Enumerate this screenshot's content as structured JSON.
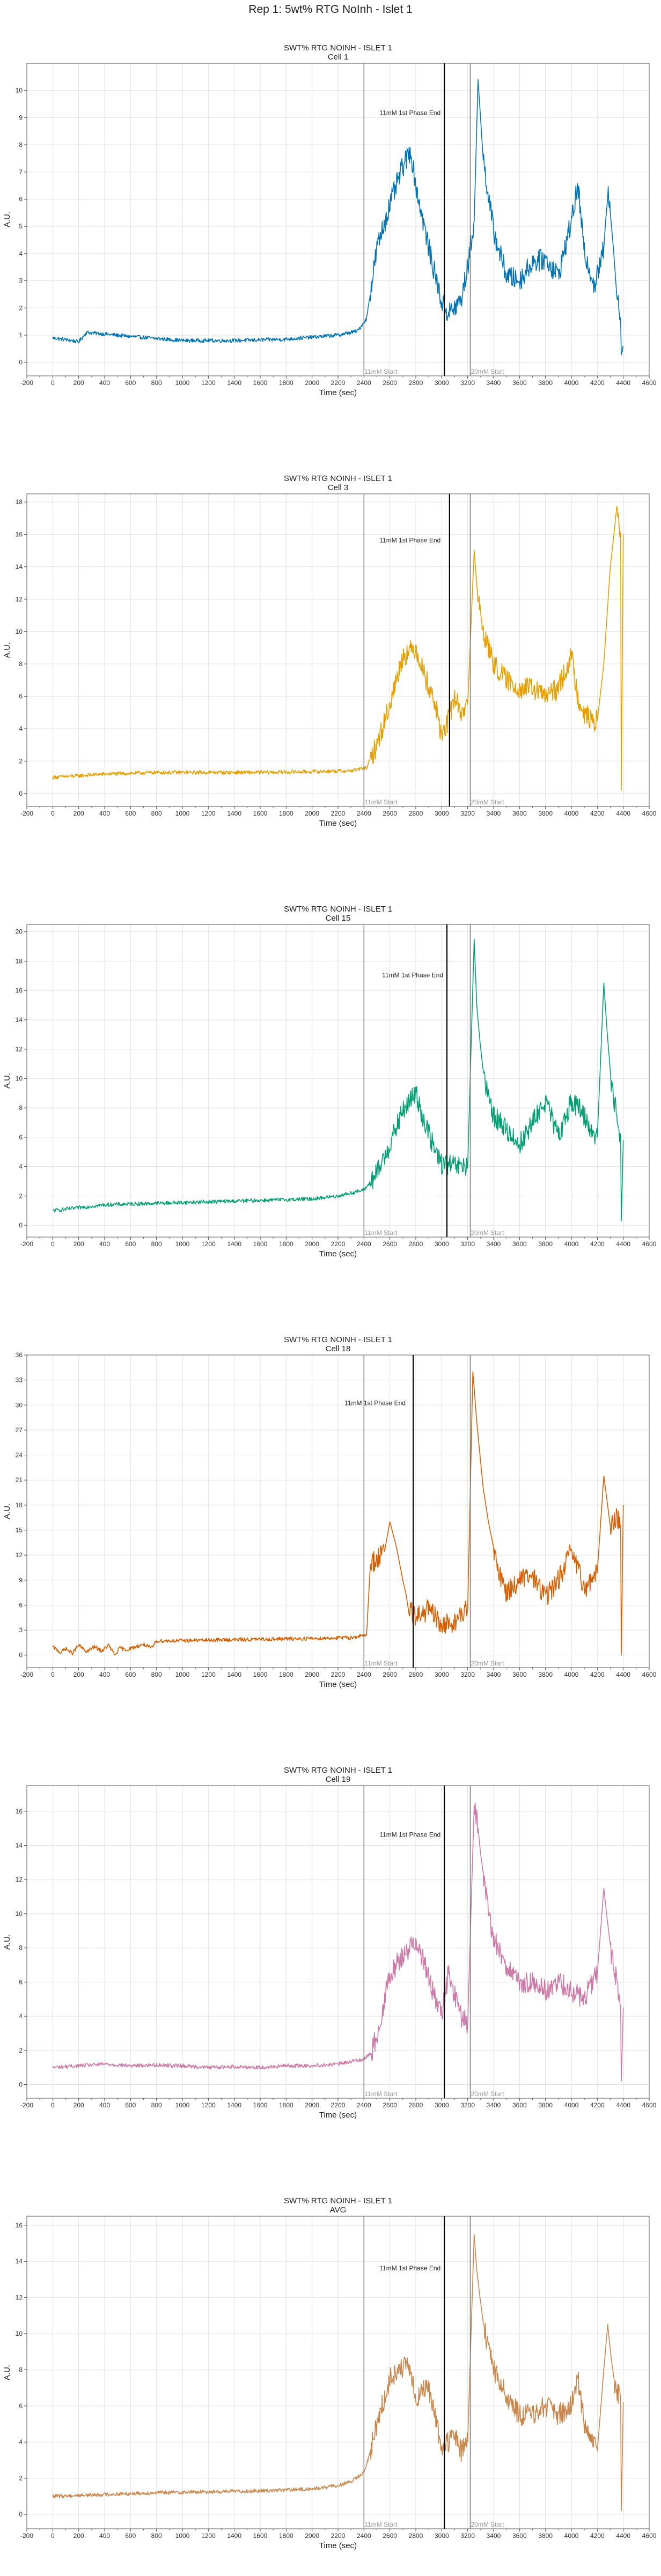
{
  "figure": {
    "suptitle": "Rep 1: 5wt% RTG NoInh - Islet 1"
  },
  "chart_data": [
    {
      "type": "line",
      "title": "SWT% RTG NOINH - ISLET 1",
      "subtitle": "Cell 1",
      "xlabel": "Time (sec)",
      "ylabel": "A.U.",
      "xlim": [
        -200,
        4600
      ],
      "ylim": [
        -0.5,
        11
      ],
      "yticks": [
        0,
        1,
        2,
        3,
        4,
        5,
        6,
        7,
        8,
        9,
        10
      ],
      "xticks": [
        -200,
        0,
        200,
        400,
        600,
        800,
        1000,
        1200,
        1400,
        1600,
        1800,
        2000,
        2200,
        2400,
        2600,
        2800,
        3000,
        3200,
        3400,
        3600,
        3800,
        4000,
        4200,
        4400,
        4600
      ],
      "grid": true,
      "series": [
        {
          "color": "#0072b2",
          "x": [
            0,
            150,
            200,
            260,
            600,
            1000,
            1400,
            1800,
            2200,
            2350,
            2420,
            2500,
            2600,
            2700,
            2760,
            2800,
            2900,
            3000,
            3050,
            3100,
            3150,
            3200,
            3250,
            3280,
            3320,
            3400,
            3500,
            3600,
            3700,
            3800,
            3900,
            3950,
            4000,
            4050,
            4100,
            4150,
            4180,
            4250,
            4280,
            4300,
            4350,
            4380,
            4385,
            4400
          ],
          "y": [
            0.9,
            0.8,
            0.75,
            1.1,
            0.95,
            0.8,
            0.8,
            0.85,
            1.0,
            1.15,
            1.6,
            4.2,
            5.8,
            7.2,
            7.8,
            6.5,
            4.2,
            2.2,
            1.8,
            2.0,
            2.3,
            3.5,
            5.2,
            10.4,
            7.5,
            4.8,
            3.2,
            3.0,
            3.7,
            3.8,
            3.2,
            4.2,
            5.2,
            6.5,
            4.0,
            3.3,
            2.8,
            4.2,
            6.3,
            5.5,
            2.8,
            1.5,
            0.3,
            0.6
          ]
        }
      ],
      "vlines": [
        {
          "x": 2400,
          "label": "11mM Start",
          "color": "#777777",
          "width": 1.5
        },
        {
          "x": 3020,
          "label": "",
          "color": "#000000",
          "width": 2.2
        },
        {
          "x": 3220,
          "label": "20mM Start",
          "color": "#777777",
          "width": 1.5
        }
      ],
      "annotation": {
        "text": "11mM 1st Phase End",
        "x": 2520,
        "y": 9.1
      }
    },
    {
      "type": "line",
      "title": "SWT% RTG NOINH - ISLET 1",
      "subtitle": "Cell 3",
      "xlabel": "Time (sec)",
      "ylabel": "A.U.",
      "xlim": [
        -200,
        4600
      ],
      "ylim": [
        -0.8,
        18.5
      ],
      "yticks": [
        0,
        2,
        4,
        6,
        8,
        10,
        12,
        14,
        16,
        18
      ],
      "xticks": [
        -200,
        0,
        200,
        400,
        600,
        800,
        1000,
        1200,
        1400,
        1600,
        1800,
        2000,
        2200,
        2400,
        2600,
        2800,
        3000,
        3200,
        3400,
        3600,
        3800,
        4000,
        4200,
        4400,
        4600
      ],
      "grid": true,
      "series": [
        {
          "color": "#e69f00",
          "x": [
            0,
            200,
            400,
            800,
            1200,
            1600,
            2000,
            2300,
            2420,
            2500,
            2600,
            2700,
            2800,
            2860,
            2950,
            3000,
            3050,
            3100,
            3150,
            3200,
            3250,
            3280,
            3320,
            3400,
            3500,
            3600,
            3700,
            3800,
            3900,
            4000,
            4050,
            4100,
            4150,
            4200,
            4250,
            4300,
            4350,
            4380,
            4385,
            4400
          ],
          "y": [
            1.0,
            1.1,
            1.2,
            1.3,
            1.3,
            1.3,
            1.35,
            1.4,
            1.6,
            3.0,
            5.5,
            8.5,
            9.0,
            7.5,
            5.5,
            3.5,
            4.5,
            6.0,
            5.0,
            5.5,
            15.0,
            12.0,
            10.0,
            8.0,
            7.0,
            6.5,
            6.5,
            6.0,
            6.5,
            8.5,
            6.0,
            5.0,
            4.5,
            4.5,
            8.0,
            14.0,
            17.5,
            16.0,
            0.2,
            16.0
          ]
        }
      ],
      "vlines": [
        {
          "x": 2400,
          "label": "11mM Start",
          "color": "#777777",
          "width": 1.5
        },
        {
          "x": 3060,
          "label": "",
          "color": "#000000",
          "width": 2.2
        },
        {
          "x": 3220,
          "label": "20mM Start",
          "color": "#777777",
          "width": 1.5
        }
      ],
      "annotation": {
        "text": "11mM 1st Phase End",
        "x": 2520,
        "y": 15.5
      }
    },
    {
      "type": "line",
      "title": "SWT% RTG NOINH - ISLET 1",
      "subtitle": "Cell 15",
      "xlabel": "Time (sec)",
      "ylabel": "A.U.",
      "xlim": [
        -200,
        4600
      ],
      "ylim": [
        -0.8,
        20.5
      ],
      "yticks": [
        0,
        2,
        4,
        6,
        8,
        10,
        12,
        14,
        16,
        18,
        20
      ],
      "xticks": [
        -200,
        0,
        200,
        400,
        600,
        800,
        1000,
        1200,
        1400,
        1600,
        1800,
        2000,
        2200,
        2400,
        2600,
        2800,
        3000,
        3200,
        3400,
        3600,
        3800,
        4000,
        4200,
        4400,
        4600
      ],
      "grid": true,
      "series": [
        {
          "color": "#009e73",
          "x": [
            0,
            200,
            400,
            800,
            1200,
            1600,
            2000,
            2200,
            2400,
            2500,
            2600,
            2700,
            2800,
            2850,
            2950,
            3000,
            3100,
            3200,
            3250,
            3270,
            3320,
            3400,
            3500,
            3600,
            3700,
            3800,
            3900,
            4000,
            4100,
            4150,
            4200,
            4250,
            4300,
            4350,
            4380,
            4385,
            4400
          ],
          "y": [
            1.0,
            1.2,
            1.4,
            1.5,
            1.6,
            1.7,
            1.8,
            2.0,
            2.4,
            3.5,
            5.5,
            7.8,
            9.0,
            7.5,
            5.0,
            4.2,
            4.0,
            4.0,
            19.5,
            15.0,
            10.0,
            7.5,
            6.5,
            5.5,
            7.0,
            8.5,
            6.0,
            8.5,
            7.5,
            6.5,
            6.0,
            16.5,
            10.0,
            7.5,
            6.0,
            0.3,
            5.8
          ]
        }
      ],
      "vlines": [
        {
          "x": 2400,
          "label": "11mM Start",
          "color": "#777777",
          "width": 1.5
        },
        {
          "x": 3040,
          "label": "",
          "color": "#000000",
          "width": 2.2
        },
        {
          "x": 3220,
          "label": "20mM Start",
          "color": "#777777",
          "width": 1.5
        }
      ],
      "annotation": {
        "text": "11mM 1st Phase End",
        "x": 2540,
        "y": 16.9
      }
    },
    {
      "type": "line",
      "title": "SWT% RTG NOINH - ISLET 1",
      "subtitle": "Cell 18",
      "xlabel": "Time (sec)",
      "ylabel": "A.U.",
      "xlim": [
        -200,
        4600
      ],
      "ylim": [
        -1.5,
        36
      ],
      "yticks": [
        0,
        3,
        6,
        9,
        12,
        15,
        18,
        21,
        24,
        27,
        30,
        33,
        36
      ],
      "xticks": [
        -200,
        0,
        200,
        400,
        600,
        800,
        1000,
        1200,
        1400,
        1600,
        1800,
        2000,
        2200,
        2400,
        2600,
        2800,
        3000,
        3200,
        3400,
        3600,
        3800,
        4000,
        4200,
        4400,
        4600
      ],
      "grid": true,
      "series": [
        {
          "color": "#d55e00",
          "x": [
            0,
            60,
            100,
            150,
            200,
            260,
            320,
            380,
            430,
            480,
            520,
            560,
            620,
            700,
            760,
            800,
            1200,
            1600,
            2000,
            2300,
            2420,
            2450,
            2500,
            2560,
            2600,
            2650,
            2700,
            2750,
            2800,
            2900,
            3000,
            3100,
            3200,
            3240,
            3270,
            3320,
            3400,
            3500,
            3600,
            3700,
            3800,
            3900,
            4000,
            4100,
            4200,
            4250,
            4300,
            4350,
            4380,
            4385,
            4400
          ],
          "y": [
            1.0,
            0.3,
            0.8,
            0.2,
            1.2,
            0.4,
            1.0,
            0.5,
            1.2,
            0.0,
            0.9,
            0.6,
            0.9,
            1.3,
            0.8,
            1.7,
            1.8,
            1.9,
            2.0,
            2.1,
            2.4,
            11.0,
            11.5,
            12.5,
            16.0,
            13.0,
            9.0,
            5.5,
            4.5,
            5.5,
            3.5,
            4.0,
            5.5,
            34.0,
            28.0,
            20.0,
            12.0,
            7.5,
            9.0,
            9.5,
            7.0,
            9.0,
            12.5,
            8.0,
            10.0,
            21.5,
            15.5,
            16.5,
            15.5,
            0.0,
            18.0
          ]
        }
      ],
      "vlines": [
        {
          "x": 2400,
          "label": "11mM Start",
          "color": "#777777",
          "width": 1.5
        },
        {
          "x": 2780,
          "label": "",
          "color": "#000000",
          "width": 2.2
        },
        {
          "x": 3220,
          "label": "20mM Start",
          "color": "#777777",
          "width": 1.5
        }
      ],
      "annotation": {
        "text": "11mM 1st Phase End",
        "x": 2250,
        "y": 30.0
      }
    },
    {
      "type": "line",
      "title": "SWT% RTG NOINH - ISLET 1",
      "subtitle": "Cell 19",
      "xlabel": "Time (sec)",
      "ylabel": "A.U.",
      "xlim": [
        -200,
        4600
      ],
      "ylim": [
        -0.8,
        17.5
      ],
      "yticks": [
        0,
        2,
        4,
        6,
        8,
        10,
        12,
        14,
        16
      ],
      "xticks": [
        -200,
        0,
        200,
        400,
        600,
        800,
        1000,
        1200,
        1400,
        1600,
        1800,
        2000,
        2200,
        2400,
        2600,
        2800,
        3000,
        3200,
        3400,
        3600,
        3800,
        4000,
        4200,
        4400,
        4600
      ],
      "grid": true,
      "series": [
        {
          "color": "#cc79a7",
          "x": [
            0,
            200,
            400,
            600,
            800,
            1000,
            1200,
            1400,
            1600,
            1800,
            2000,
            2200,
            2400,
            2450,
            2500,
            2600,
            2700,
            2800,
            2850,
            2950,
            3000,
            3050,
            3150,
            3200,
            3250,
            3280,
            3320,
            3400,
            3500,
            3600,
            3700,
            3800,
            3900,
            4000,
            4100,
            4200,
            4250,
            4300,
            4350,
            4380,
            4385,
            4400
          ],
          "y": [
            1.0,
            1.1,
            1.2,
            1.1,
            1.15,
            1.1,
            1.0,
            1.05,
            1.0,
            1.1,
            1.1,
            1.2,
            1.5,
            1.8,
            2.8,
            6.5,
            7.5,
            8.5,
            7.5,
            5.0,
            4.0,
            6.5,
            4.0,
            3.5,
            16.5,
            15.0,
            12.0,
            8.5,
            7.0,
            5.8,
            6.0,
            5.5,
            6.0,
            5.5,
            5.0,
            6.5,
            11.5,
            8.0,
            6.0,
            4.5,
            0.2,
            4.5
          ]
        }
      ],
      "vlines": [
        {
          "x": 2400,
          "label": "11mM Start",
          "color": "#777777",
          "width": 1.5
        },
        {
          "x": 3020,
          "label": "",
          "color": "#000000",
          "width": 2.2
        },
        {
          "x": 3220,
          "label": "20mM Start",
          "color": "#777777",
          "width": 1.5
        }
      ],
      "annotation": {
        "text": "11mM 1st Phase End",
        "x": 2520,
        "y": 14.5
      }
    },
    {
      "type": "line",
      "title": "SWT% RTG NOINH - ISLET 1",
      "subtitle": "AVG",
      "xlabel": "Time (sec)",
      "ylabel": "A.U.",
      "xlim": [
        -200,
        4600
      ],
      "ylim": [
        -0.8,
        16.5
      ],
      "yticks": [
        0,
        2,
        4,
        6,
        8,
        10,
        12,
        14,
        16
      ],
      "xticks": [
        -200,
        0,
        200,
        400,
        600,
        800,
        1000,
        1200,
        1400,
        1600,
        1800,
        2000,
        2200,
        2400,
        2600,
        2800,
        3000,
        3200,
        3400,
        3600,
        3800,
        4000,
        4200,
        4400,
        4600
      ],
      "grid": true,
      "series": [
        {
          "color": "#c8864b",
          "x": [
            0,
            200,
            400,
            800,
            1200,
            1600,
            2000,
            2200,
            2300,
            2400,
            2450,
            2500,
            2600,
            2700,
            2750,
            2800,
            2900,
            2950,
            3000,
            3050,
            3100,
            3150,
            3200,
            3250,
            3270,
            3320,
            3400,
            3500,
            3600,
            3700,
            3800,
            3900,
            4000,
            4050,
            4100,
            4150,
            4200,
            4250,
            4280,
            4330,
            4380,
            4385,
            4400
          ],
          "y": [
            1.0,
            1.05,
            1.1,
            1.2,
            1.25,
            1.3,
            1.4,
            1.6,
            1.8,
            2.3,
            3.5,
            5.0,
            7.5,
            8.2,
            8.0,
            6.5,
            7.0,
            5.5,
            3.5,
            4.0,
            4.5,
            3.5,
            4.0,
            15.5,
            13.5,
            10.5,
            8.0,
            6.5,
            5.5,
            5.5,
            6.0,
            5.5,
            6.0,
            7.5,
            5.0,
            4.0,
            3.5,
            8.0,
            10.5,
            7.0,
            6.5,
            0.2,
            6.2
          ]
        }
      ],
      "vlines": [
        {
          "x": 2400,
          "label": "11mM Start",
          "color": "#777777",
          "width": 1.5
        },
        {
          "x": 3020,
          "label": "",
          "color": "#000000",
          "width": 2.2
        },
        {
          "x": 3220,
          "label": "20mM Start",
          "color": "#777777",
          "width": 1.5
        }
      ],
      "annotation": {
        "text": "11mM 1st Phase End",
        "x": 2520,
        "y": 13.5
      }
    }
  ]
}
